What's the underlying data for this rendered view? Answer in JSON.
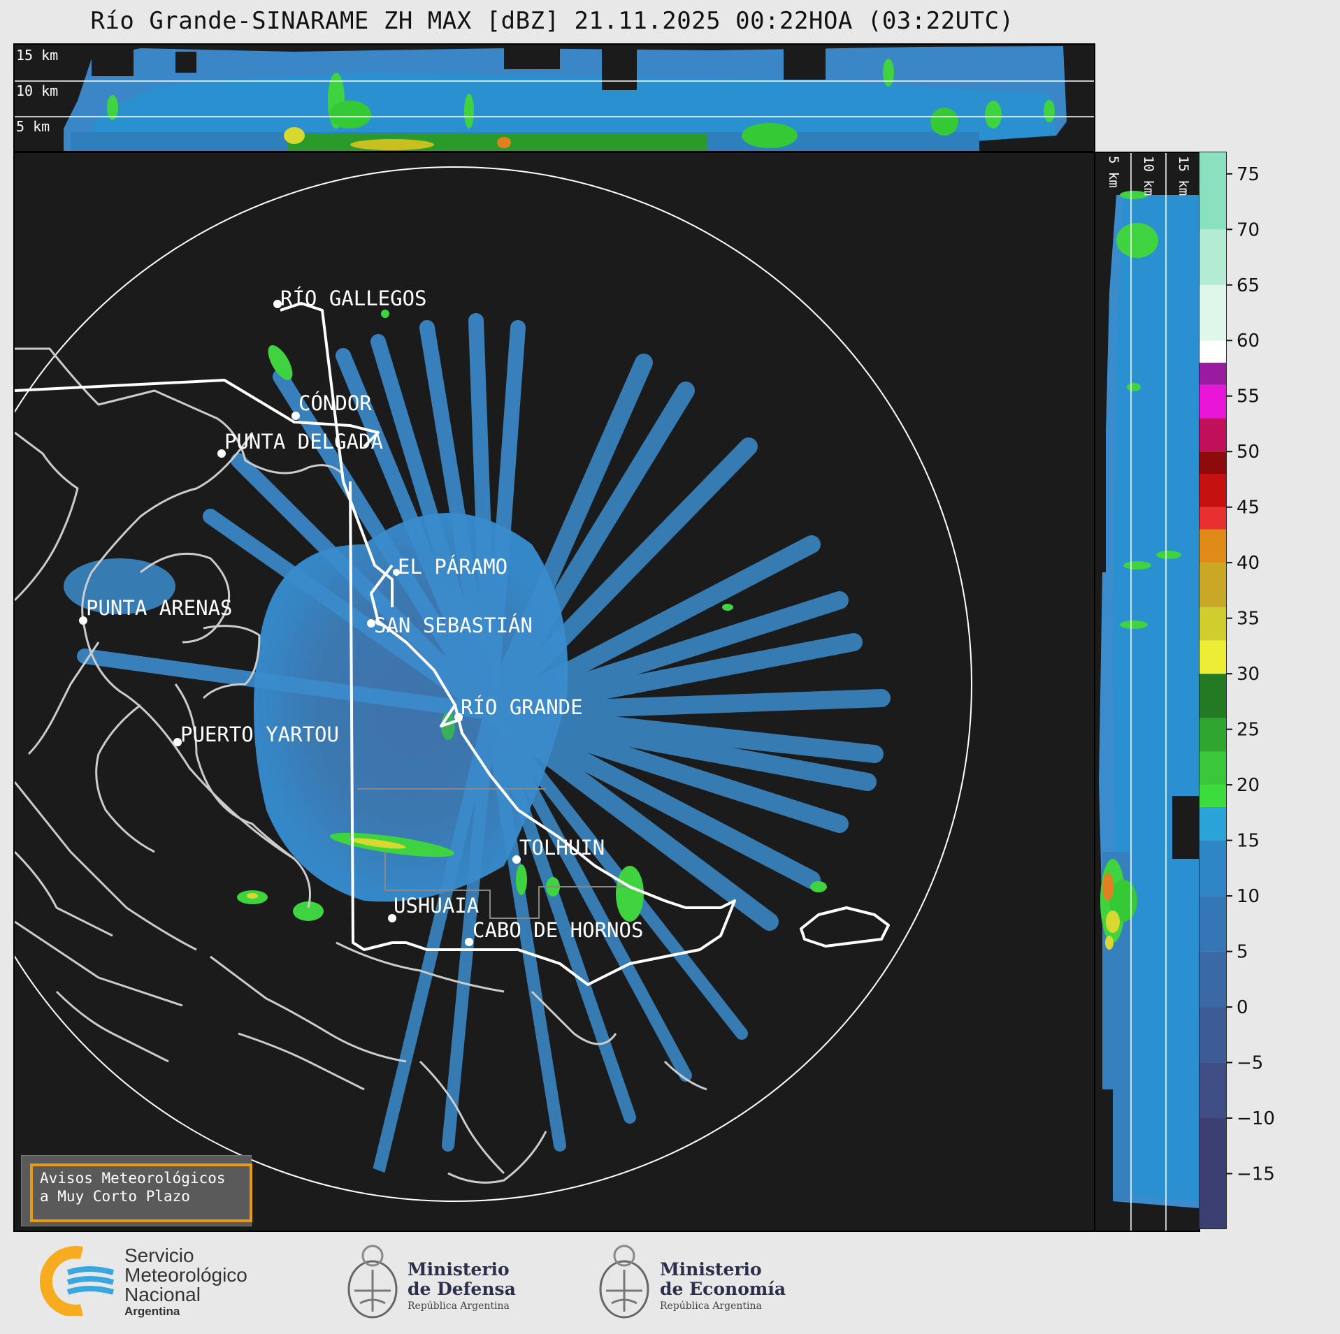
{
  "title": "Río Grande-SINARAME ZH MAX [dBZ] 21.11.2025 00:22HOA (03:22UTC)",
  "top_panel": {
    "height_labels": [
      "15 km",
      "10 km",
      "5 km"
    ]
  },
  "right_panel": {
    "height_labels": [
      "5 km",
      "10 km",
      "15 km"
    ]
  },
  "colorbar": {
    "unit": "dBZ",
    "ticks": [
      "75",
      "70",
      "65",
      "60",
      "55",
      "50",
      "45",
      "40",
      "35",
      "30",
      "25",
      "20",
      "15",
      "10",
      "5",
      "0",
      "−5",
      "−10",
      "−15"
    ],
    "tick_values": [
      75,
      70,
      65,
      60,
      55,
      50,
      45,
      40,
      35,
      30,
      25,
      20,
      15,
      10,
      5,
      0,
      -5,
      -10,
      -15
    ],
    "range": [
      -20,
      77
    ]
  },
  "places": [
    {
      "name": "RÍO GALLEGOS",
      "key": "rio-gallegos"
    },
    {
      "name": "CÓNDOR",
      "key": "condor"
    },
    {
      "name": "PUNTA DELGADA",
      "key": "punta-delgada"
    },
    {
      "name": "PUNTA ARENAS",
      "key": "punta-arenas"
    },
    {
      "name": "EL PÁRAMO",
      "key": "el-paramo"
    },
    {
      "name": "SAN SEBASTIÁN",
      "key": "san-sebastian"
    },
    {
      "name": "RÍO GRANDE",
      "key": "rio-grande"
    },
    {
      "name": "PUERTO YARTOU",
      "key": "puerto-yartou"
    },
    {
      "name": "TOLHUIN",
      "key": "tolhuin"
    },
    {
      "name": "USHUAIA",
      "key": "ushuaia"
    },
    {
      "name": "CABO DE HORNOS",
      "key": "cabo-de-hornos"
    }
  ],
  "warning": {
    "line1": "Avisos Meteorológicos",
    "line2": "a Muy Corto Plazo"
  },
  "logos": {
    "smn": {
      "line1": "Servicio",
      "line2": "Meteorológico",
      "line3": "Nacional",
      "line4": "Argentina"
    },
    "defensa": {
      "line1": "Ministerio",
      "line2": "de Defensa",
      "line3": "República Argentina"
    },
    "economia": {
      "line1": "Ministerio",
      "line2": "de Economía",
      "line3": "República Argentina"
    }
  }
}
